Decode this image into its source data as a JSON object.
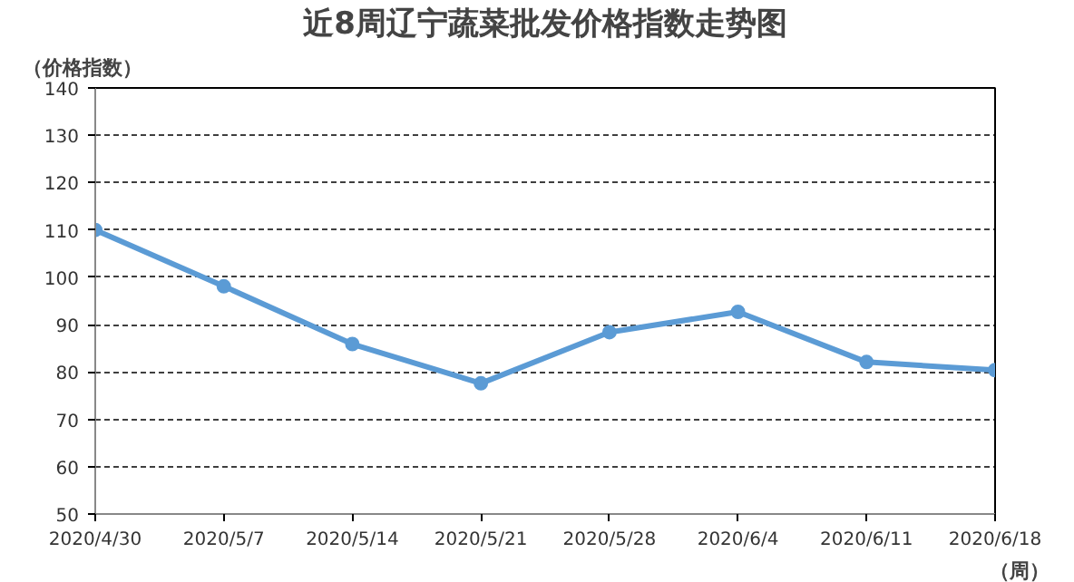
{
  "chart_data": {
    "type": "line",
    "title": "近8周辽宁蔬菜批发价格指数走势图",
    "ylabel": "（价格指数）",
    "xlabel": "（周）",
    "categories": [
      "2020/4/30",
      "2020/5/7",
      "2020/5/14",
      "2020/5/21",
      "2020/5/28",
      "2020/6/4",
      "2020/6/11",
      "2020/6/18"
    ],
    "series": [
      {
        "color": "#5b9bd5",
        "values": [
          110,
          98.1,
          85.9,
          77.6,
          88.4,
          92.7,
          82.1,
          80.4
        ]
      }
    ],
    "ylim": [
      50,
      140
    ],
    "yticks": [
      50,
      60,
      70,
      80,
      90,
      100,
      110,
      120,
      130,
      140
    ],
    "grid": "y",
    "marker": "circle",
    "line_style": "solid"
  }
}
